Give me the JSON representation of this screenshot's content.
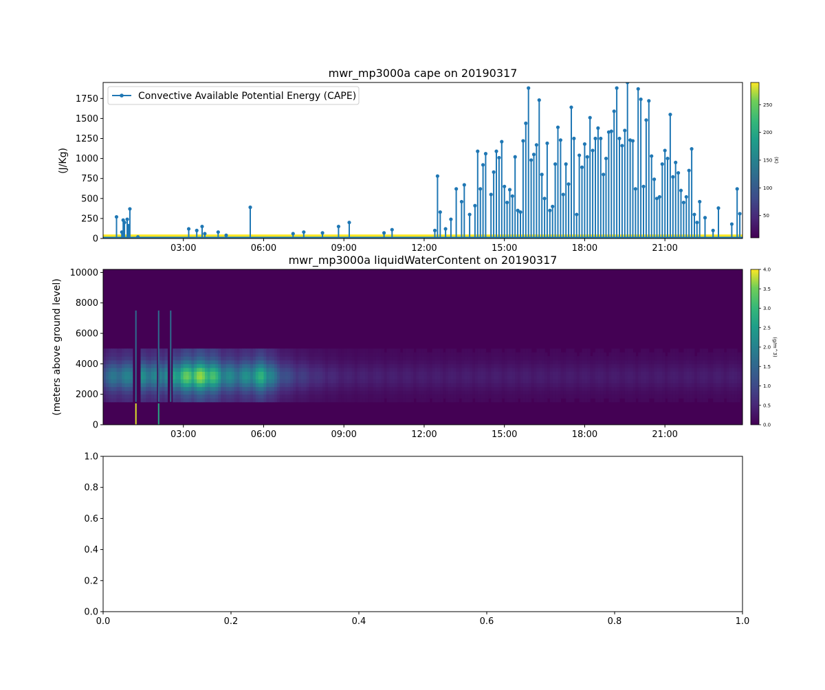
{
  "figure": {
    "panels": [
      {
        "title": "mwr_mp3000a cape on 20190317",
        "ylabel": "(J/Kg)",
        "legend": "Convective Available Potential Energy (CAPE)",
        "colorbar_label": "(K)",
        "colorbar_ticks": [
          "50",
          "100",
          "150",
          "200",
          "250"
        ],
        "x_ticks": [
          "03:00",
          "06:00",
          "09:00",
          "12:00",
          "15:00",
          "18:00",
          "21:00"
        ],
        "y_ticks": [
          "0",
          "250",
          "500",
          "750",
          "1000",
          "1250",
          "1500",
          "1750"
        ]
      },
      {
        "title": "mwr_mp3000a liquidWaterContent on 20190317",
        "ylabel": "(meters above ground level)",
        "colorbar_label": "(g/m^3)",
        "colorbar_ticks": [
          "0.0",
          "0.5",
          "1.0",
          "1.5",
          "2.0",
          "2.5",
          "3.0",
          "3.5",
          "4.0"
        ],
        "x_ticks": [
          "03:00",
          "06:00",
          "09:00",
          "12:00",
          "15:00",
          "18:00",
          "21:00"
        ],
        "y_ticks": [
          "0",
          "2000",
          "4000",
          "6000",
          "8000",
          "10000"
        ]
      },
      {
        "x_ticks": [
          "0.0",
          "0.2",
          "0.4",
          "0.6",
          "0.8",
          "1.0"
        ],
        "y_ticks": [
          "0.0",
          "0.2",
          "0.4",
          "0.6",
          "0.8",
          "1.0"
        ]
      }
    ]
  },
  "colors": {
    "line": "#1f77b4",
    "viridis_low": "#440154",
    "viridis_high": "#fde725"
  },
  "chart_data": [
    {
      "type": "line",
      "title": "mwr_mp3000a cape on 20190317",
      "ylabel": "(J/Kg)",
      "xlim_hours": [
        0.0,
        23.9
      ],
      "ylim": [
        0,
        1950
      ],
      "x_tick_labels": [
        "03:00",
        "06:00",
        "09:00",
        "12:00",
        "15:00",
        "18:00",
        "21:00"
      ],
      "legend_placement": "top-left",
      "series": [
        {
          "name": "Convective Available Potential Energy (CAPE)",
          "x_hours": [
            0.5,
            0.7,
            0.75,
            0.8,
            0.9,
            0.95,
            1.0,
            1.3,
            3.2,
            3.5,
            3.7,
            3.8,
            4.3,
            4.6,
            5.5,
            7.1,
            7.5,
            8.2,
            8.8,
            9.2,
            10.5,
            10.8,
            12.4,
            12.5,
            12.6,
            12.8,
            13.0,
            13.2,
            13.4,
            13.5,
            13.7,
            13.9,
            14.0,
            14.1,
            14.2,
            14.3,
            14.5,
            14.6,
            14.7,
            14.8,
            14.9,
            15.0,
            15.1,
            15.2,
            15.3,
            15.4,
            15.5,
            15.6,
            15.7,
            15.8,
            15.9,
            16.0,
            16.1,
            16.2,
            16.3,
            16.4,
            16.5,
            16.6,
            16.7,
            16.8,
            16.9,
            17.0,
            17.1,
            17.2,
            17.3,
            17.4,
            17.5,
            17.6,
            17.7,
            17.8,
            17.9,
            18.0,
            18.1,
            18.2,
            18.3,
            18.4,
            18.5,
            18.6,
            18.7,
            18.8,
            18.9,
            19.0,
            19.1,
            19.2,
            19.3,
            19.4,
            19.5,
            19.6,
            19.7,
            19.8,
            19.9,
            20.0,
            20.1,
            20.2,
            20.3,
            20.4,
            20.5,
            20.6,
            20.7,
            20.8,
            20.9,
            21.0,
            21.1,
            21.2,
            21.3,
            21.4,
            21.5,
            21.6,
            21.7,
            21.8,
            21.9,
            22.0,
            22.1,
            22.2,
            22.3,
            22.5,
            22.8,
            23.0,
            23.5,
            23.7,
            23.8
          ],
          "values": [
            270,
            80,
            230,
            200,
            240,
            160,
            370,
            20,
            120,
            100,
            150,
            60,
            80,
            40,
            390,
            60,
            80,
            70,
            150,
            200,
            70,
            110,
            100,
            780,
            330,
            120,
            240,
            620,
            460,
            670,
            300,
            410,
            1090,
            620,
            920,
            1060,
            550,
            830,
            1090,
            1010,
            1210,
            650,
            450,
            610,
            530,
            1020,
            350,
            330,
            1220,
            1440,
            1880,
            980,
            1050,
            1170,
            1730,
            800,
            500,
            1190,
            350,
            400,
            930,
            1390,
            1230,
            550,
            930,
            680,
            1640,
            1250,
            300,
            1040,
            890,
            1180,
            1020,
            1510,
            1100,
            1250,
            1380,
            1250,
            800,
            1000,
            1330,
            1340,
            1590,
            1880,
            1250,
            1160,
            1350,
            1950,
            1230,
            1220,
            620,
            1870,
            1740,
            650,
            1480,
            1720,
            1030,
            740,
            500,
            520,
            930,
            1100,
            1000,
            1550,
            770,
            950,
            820,
            600,
            450,
            520,
            850,
            1120,
            300,
            200,
            460,
            260,
            100,
            380,
            180,
            620,
            310
          ]
        },
        {
          "name": "(K)",
          "note_shading": "colored band near zero",
          "colorbar_range": [
            10,
            290
          ]
        }
      ]
    },
    {
      "type": "heatmap",
      "title": "mwr_mp3000a liquidWaterContent on 20190317",
      "ylabel": "(meters above ground level)",
      "xlim_hours": [
        0.0,
        23.9
      ],
      "ylim": [
        0,
        10200
      ],
      "x_tick_labels": [
        "03:00",
        "06:00",
        "09:00",
        "12:00",
        "15:00",
        "18:00",
        "21:00"
      ],
      "colorbar_label": "(g/m^3)",
      "colorbar_range": [
        0,
        4.0
      ],
      "layer_m": [
        1500,
        5000
      ],
      "layer_peak_m": 3200,
      "intensity_by_hour": [
        [
          0,
          1.2
        ],
        [
          0.5,
          1.5
        ],
        [
          1.0,
          1.6
        ],
        [
          1.5,
          1.8
        ],
        [
          2.0,
          1.6
        ],
        [
          2.5,
          2.0
        ],
        [
          3.0,
          2.6
        ],
        [
          3.5,
          3.0
        ],
        [
          4.0,
          2.8
        ],
        [
          4.5,
          1.8
        ],
        [
          5.0,
          1.6
        ],
        [
          5.5,
          1.9
        ],
        [
          6.0,
          2.4
        ],
        [
          6.5,
          1.2
        ],
        [
          7.0,
          0.8
        ],
        [
          8.0,
          0.5
        ],
        [
          9.0,
          0.35
        ],
        [
          12.0,
          0.3
        ],
        [
          15.0,
          0.3
        ],
        [
          18.0,
          0.28
        ],
        [
          21.0,
          0.28
        ],
        [
          23.9,
          0.3
        ]
      ],
      "dry_gaps_hours": [
        [
          1.15,
          1.4
        ],
        [
          2.0,
          2.15
        ],
        [
          2.45,
          2.6
        ]
      ]
    },
    {
      "type": "line",
      "series": [],
      "xlim": [
        0.0,
        1.0
      ],
      "ylim": [
        0.0,
        1.0
      ],
      "x_tick_labels": [
        "0.0",
        "0.2",
        "0.4",
        "0.6",
        "0.8",
        "1.0"
      ],
      "y_tick_labels": [
        "0.0",
        "0.2",
        "0.4",
        "0.6",
        "0.8",
        "1.0"
      ]
    }
  ]
}
